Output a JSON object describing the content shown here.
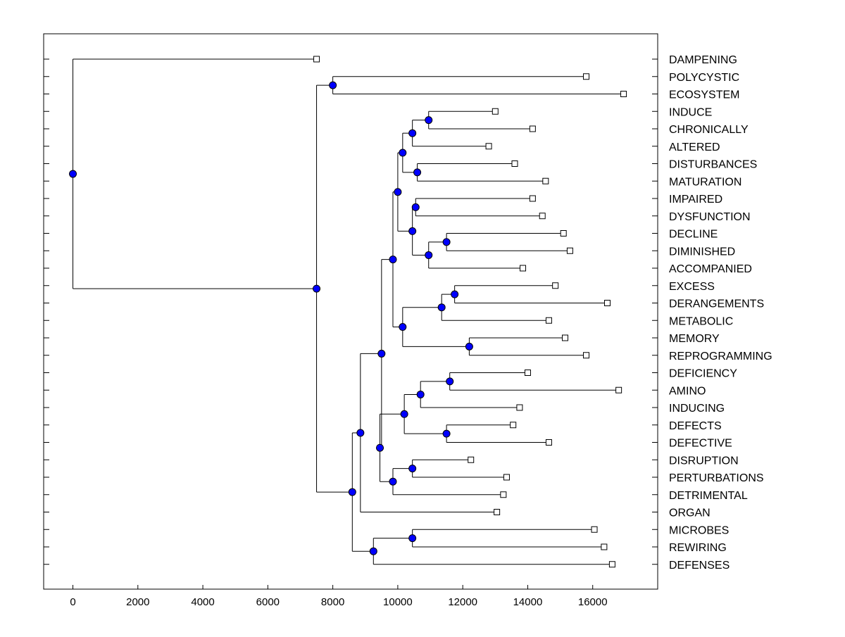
{
  "chart_data": {
    "type": "dendrogram",
    "title": "",
    "xlabel": "",
    "ylabel": "",
    "xlim": [
      -900,
      18000
    ],
    "xticks": [
      0,
      2000,
      4000,
      6000,
      8000,
      10000,
      12000,
      14000,
      16000
    ],
    "xtick_labels": [
      "0",
      "2000",
      "4000",
      "6000",
      "8000",
      "10000",
      "12000",
      "14000",
      "16000"
    ],
    "leaves": [
      {
        "label": "DAMPENING",
        "value": 7500
      },
      {
        "label": "POLYCYSTIC",
        "value": 15800
      },
      {
        "label": "ECOSYSTEM",
        "value": 16950
      },
      {
        "label": "INDUCE",
        "value": 13000
      },
      {
        "label": "CHRONICALLY",
        "value": 14150
      },
      {
        "label": "ALTERED",
        "value": 12800
      },
      {
        "label": "DISTURBANCES",
        "value": 13600
      },
      {
        "label": "MATURATION",
        "value": 14550
      },
      {
        "label": "IMPAIRED",
        "value": 14150
      },
      {
        "label": "DYSFUNCTION",
        "value": 14450
      },
      {
        "label": "DECLINE",
        "value": 15100
      },
      {
        "label": "DIMINISHED",
        "value": 15300
      },
      {
        "label": "ACCOMPANIED",
        "value": 13850
      },
      {
        "label": "EXCESS",
        "value": 14850
      },
      {
        "label": "DERANGEMENTS",
        "value": 16450
      },
      {
        "label": "METABOLIC",
        "value": 14650
      },
      {
        "label": "MEMORY",
        "value": 15150
      },
      {
        "label": "REPROGRAMMING",
        "value": 15800
      },
      {
        "label": "DEFICIENCY",
        "value": 14000
      },
      {
        "label": "AMINO",
        "value": 16800
      },
      {
        "label": "INDUCING",
        "value": 13750
      },
      {
        "label": "DEFECTS",
        "value": 13550
      },
      {
        "label": "DEFECTIVE",
        "value": 14650
      },
      {
        "label": "DISRUPTION",
        "value": 12250
      },
      {
        "label": "PERTURBATIONS",
        "value": 13350
      },
      {
        "label": "DETRIMENTAL",
        "value": 13250
      },
      {
        "label": "ORGAN",
        "value": 13050
      },
      {
        "label": "MICROBES",
        "value": 16050
      },
      {
        "label": "REWIRING",
        "value": 16350
      },
      {
        "label": "DEFENSES",
        "value": 16600
      }
    ],
    "merges": [
      {
        "id": "m_poly_eco",
        "children": [
          1,
          2
        ],
        "value": 8000
      },
      {
        "id": "m_induce_chron",
        "children": [
          3,
          4
        ],
        "value": 10950
      },
      {
        "id": "m_ica",
        "children": [
          "m_induce_chron",
          5
        ],
        "value": 10450
      },
      {
        "id": "m_dist_mat",
        "children": [
          6,
          7
        ],
        "value": 10600
      },
      {
        "id": "m_grpA",
        "children": [
          "m_ica",
          "m_dist_mat"
        ],
        "value": 10150
      },
      {
        "id": "m_imp_dys",
        "children": [
          8,
          9
        ],
        "value": 10550
      },
      {
        "id": "m_dec_dim",
        "children": [
          10,
          11
        ],
        "value": 11500
      },
      {
        "id": "m_dda",
        "children": [
          "m_dec_dim",
          12
        ],
        "value": 10950
      },
      {
        "id": "m_grpB",
        "children": [
          "m_imp_dys",
          "m_dda"
        ],
        "value": 10450
      },
      {
        "id": "m_AB",
        "children": [
          "m_grpA",
          "m_grpB"
        ],
        "value": 10000
      },
      {
        "id": "m_exc_der",
        "children": [
          13,
          14
        ],
        "value": 11750
      },
      {
        "id": "m_edm",
        "children": [
          "m_exc_der",
          15
        ],
        "value": 11350
      },
      {
        "id": "m_mem_rep",
        "children": [
          16,
          17
        ],
        "value": 12200
      },
      {
        "id": "m_meta",
        "children": [
          "m_edm",
          "m_mem_rep"
        ],
        "value": 10150
      },
      {
        "id": "m_AB_meta",
        "children": [
          "m_AB",
          "m_meta"
        ],
        "value": 9850
      },
      {
        "id": "m_def_ami",
        "children": [
          18,
          19
        ],
        "value": 11600
      },
      {
        "id": "m_dai",
        "children": [
          "m_def_ami",
          20
        ],
        "value": 10700
      },
      {
        "id": "m_defects",
        "children": [
          21,
          22
        ],
        "value": 11500
      },
      {
        "id": "m_defgrp",
        "children": [
          "m_dai",
          "m_defects"
        ],
        "value": 10200
      },
      {
        "id": "m_dis_per",
        "children": [
          23,
          24
        ],
        "value": 10450
      },
      {
        "id": "m_dpd",
        "children": [
          "m_dis_per",
          25
        ],
        "value": 9850
      },
      {
        "id": "m_D",
        "children": [
          "m_defgrp",
          "m_dpd"
        ],
        "value": 9450
      },
      {
        "id": "m_CD",
        "children": [
          "m_AB_meta",
          "m_D"
        ],
        "value": 9500
      },
      {
        "id": "m_CD_organ",
        "children": [
          "m_CD",
          26
        ],
        "value": 8850
      },
      {
        "id": "m_mic_rew",
        "children": [
          27,
          28
        ],
        "value": 10450
      },
      {
        "id": "m_mrd",
        "children": [
          "m_mic_rew",
          29
        ],
        "value": 9250
      },
      {
        "id": "m_bottom",
        "children": [
          "m_CD_organ",
          "m_mrd"
        ],
        "value": 8600
      },
      {
        "id": "m_main",
        "children": [
          "m_poly_eco",
          "m_bottom"
        ],
        "value": 7500
      },
      {
        "id": "m_root",
        "children": [
          0,
          "m_main"
        ],
        "value": 0
      }
    ],
    "colors": {
      "node_fill": "#0000ff",
      "leaf_fill": "#ffffff",
      "line": "#000000"
    }
  }
}
